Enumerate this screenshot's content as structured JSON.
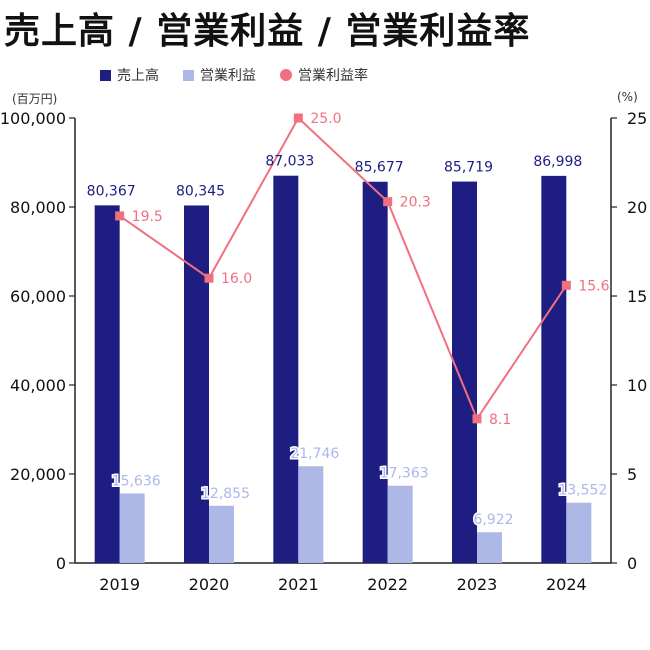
{
  "title": "売上高 / 営業利益 / 営業利益率",
  "units": {
    "left": "(百万円)",
    "right": "(%)"
  },
  "colors": {
    "sales": "#1e1e82",
    "profit": "#adb8e6",
    "margin": "#f07080",
    "axis": "#222222"
  },
  "chart_data": {
    "type": "bar",
    "categories": [
      "2019",
      "2020",
      "2021",
      "2022",
      "2023",
      "2024"
    ],
    "series": [
      {
        "name": "売上高",
        "type": "bar",
        "axis": "left",
        "values": [
          80367,
          80345,
          87033,
          85677,
          85719,
          86998
        ],
        "labels": [
          "80,367",
          "80,345",
          "87,033",
          "85,677",
          "85,719",
          "86,998"
        ]
      },
      {
        "name": "営業利益",
        "type": "bar",
        "axis": "left",
        "values": [
          15636,
          12855,
          21746,
          17363,
          6922,
          13552
        ],
        "labels": [
          "15,636",
          "12,855",
          "21,746",
          "17,363",
          "6,922",
          "13,552"
        ]
      },
      {
        "name": "営業利益率",
        "type": "line",
        "axis": "right",
        "values": [
          19.5,
          16.0,
          25.0,
          20.3,
          8.1,
          15.6
        ],
        "labels": [
          "19.5",
          "16.0",
          "25.0",
          "20.3",
          "8.1",
          "15.6"
        ]
      }
    ],
    "ylim_left": [
      0,
      100000
    ],
    "ylim_right": [
      0,
      25
    ],
    "yticks_left": [
      "0",
      "20,000",
      "40,000",
      "60,000",
      "80,000",
      "100,000"
    ],
    "yticks_right": [
      "0",
      "5",
      "10",
      "15",
      "20",
      "25"
    ],
    "grid": false,
    "legend": "top"
  }
}
